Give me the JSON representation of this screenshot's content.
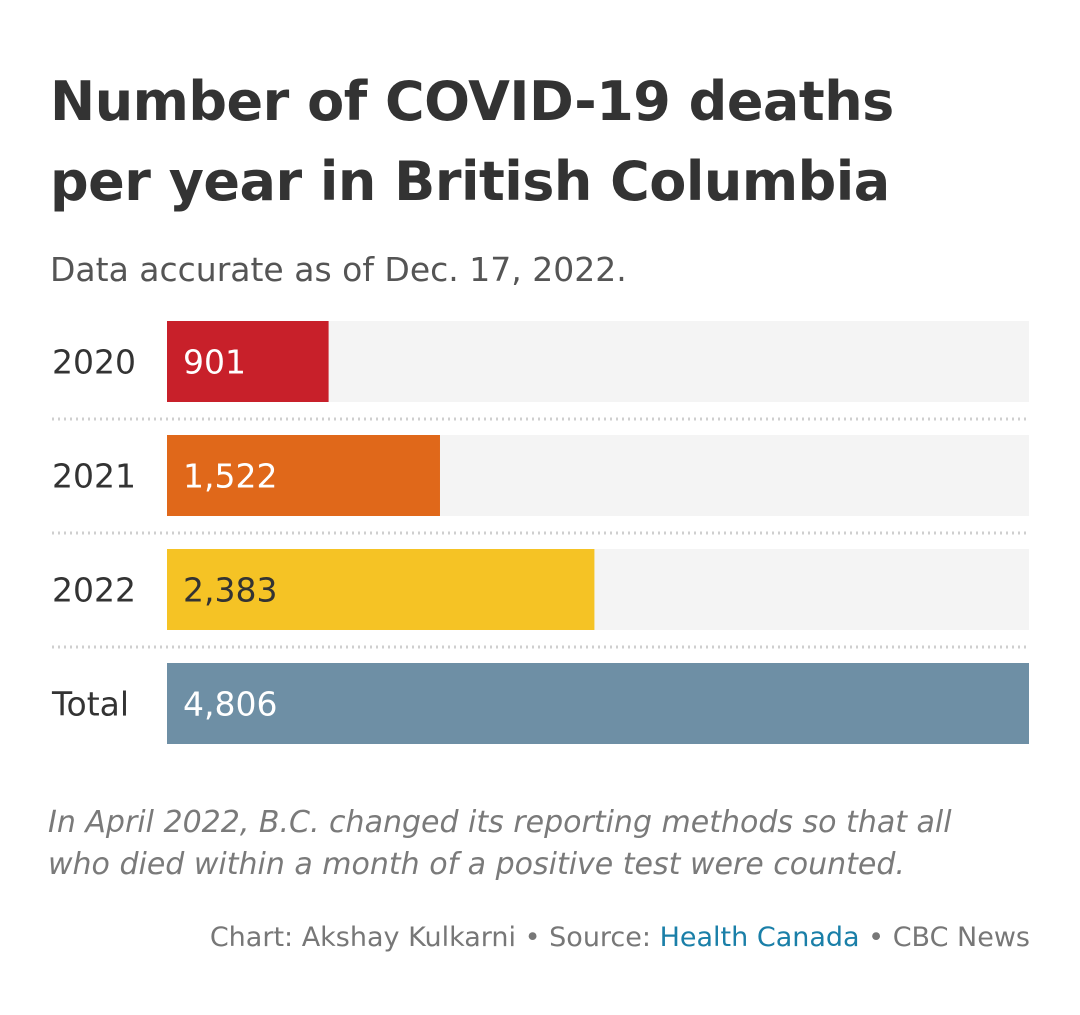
{
  "title_line1": "Number of COVID-19 deaths",
  "title_line2": "per year in British Columbia",
  "subtitle": "Data accurate as of Dec. 17, 2022.",
  "note_line1": "In April 2022, B.C. changed its reporting methods so that all",
  "note_line2": "who died within a month of a positive test were counted.",
  "credit": {
    "chart": "Chart: Akshay Kulkarni",
    "separator": "•",
    "source_prefix": "Source:",
    "source_link": "Health Canada",
    "publisher": "CBC News"
  },
  "chart_data": {
    "type": "bar",
    "orientation": "horizontal",
    "categories": [
      "2020",
      "2021",
      "2022",
      "Total"
    ],
    "values": [
      901,
      1522,
      2383,
      4806
    ],
    "value_labels": [
      "901",
      "1,522",
      "2,383",
      "4,806"
    ],
    "colors": [
      "#c8202a",
      "#e0681a",
      "#f5c325",
      "#6e8fa5"
    ],
    "label_colors": [
      "#ffffff",
      "#ffffff",
      "#333333",
      "#ffffff"
    ],
    "track_color": "#f4f4f4",
    "xlim": [
      0,
      4806
    ],
    "grid": false
  }
}
